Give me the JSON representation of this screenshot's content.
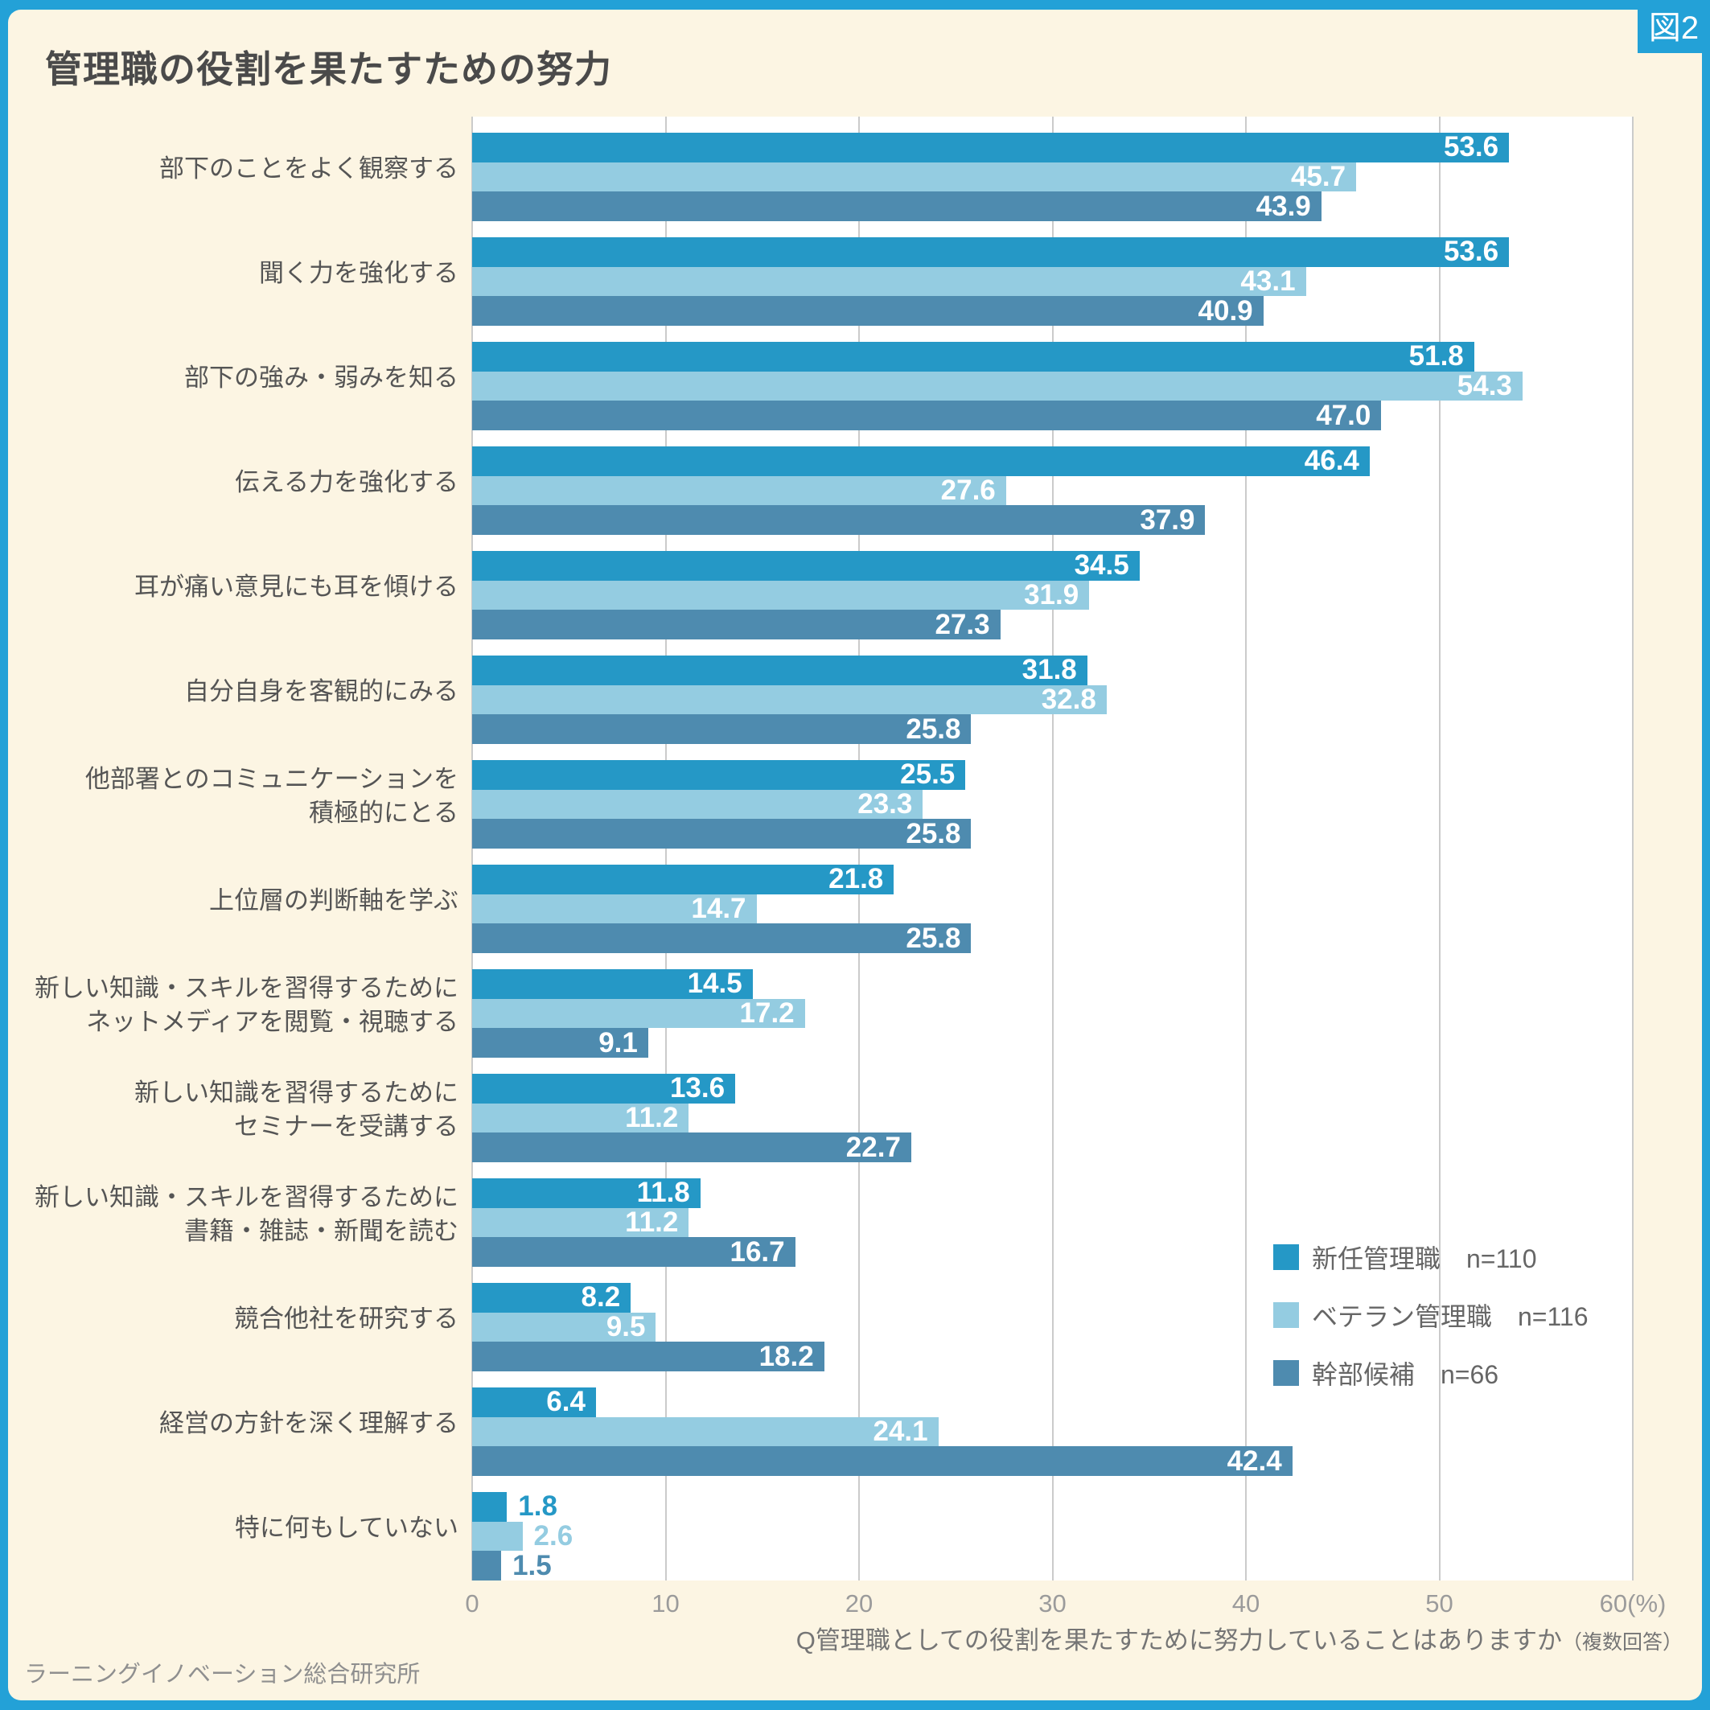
{
  "figure_tag": "図2",
  "title": "管理職の役割を果たすための努力",
  "source": "ラーニングイノベーション総合研究所",
  "question": {
    "main": "Q管理職としての役割を果たすために努力していることはありますか",
    "note": "（複数回答）"
  },
  "colors": {
    "frame_blue": "#23A1D7",
    "card_bg": "#FCF5E3",
    "plot_bg": "#FFFFFF",
    "gridline": "#CBCBCB",
    "title_color": "#4A4A4A",
    "label_color": "#555555",
    "axis_color": "#9B9B9B",
    "legend_text": "#666666",
    "question_color": "#757575",
    "footer_color": "#8F8F8F",
    "value_text": "#FFFFFF",
    "series_new": "#2598C6",
    "series_veteran": "#94CCE1",
    "series_exec": "#4E8BAF"
  },
  "chart_data": {
    "type": "bar",
    "orientation": "horizontal",
    "title": "管理職の役割を果たすための努力",
    "xlabel": "(%)",
    "xlim": [
      0,
      60
    ],
    "ticks": [
      0,
      10,
      20,
      30,
      40,
      50,
      60
    ],
    "tick_suffix_last": "(%)",
    "grid": true,
    "legend_position": "inside-right",
    "value_label_decimals": 1,
    "label_outside_below": 4,
    "categories": [
      "部下のことをよく観察する",
      "聞く力を強化する",
      "部下の強み・弱みを知る",
      "伝える力を強化する",
      "耳が痛い意見にも耳を傾ける",
      "自分自身を客観的にみる",
      "他部署とのコミュニケーションを\n積極的にとる",
      "上位層の判断軸を学ぶ",
      "新しい知識・スキルを習得するために\nネットメディアを閲覧・視聴する",
      "新しい知識を習得するために\nセミナーを受講する",
      "新しい知識・スキルを習得するために\n書籍・雑誌・新聞を読む",
      "競合他社を研究する",
      "経営の方針を深く理解する",
      "特に何もしていない"
    ],
    "series": [
      {
        "name": "新任管理職",
        "n": "n=110",
        "color": "#2598C6",
        "values": [
          53.6,
          53.6,
          51.8,
          46.4,
          34.5,
          31.8,
          25.5,
          21.8,
          14.5,
          13.6,
          11.8,
          8.2,
          6.4,
          1.8
        ]
      },
      {
        "name": "ベテラン管理職",
        "n": "n=116",
        "color": "#94CCE1",
        "values": [
          45.7,
          43.1,
          54.3,
          27.6,
          31.9,
          32.8,
          23.3,
          14.7,
          17.2,
          11.2,
          11.2,
          9.5,
          24.1,
          2.6
        ]
      },
      {
        "name": "幹部候補",
        "n": "n=66",
        "color": "#4E8BAF",
        "values": [
          43.9,
          40.9,
          47.0,
          37.9,
          27.3,
          25.8,
          25.8,
          25.8,
          9.1,
          22.7,
          16.7,
          18.2,
          42.4,
          1.5
        ]
      }
    ]
  }
}
